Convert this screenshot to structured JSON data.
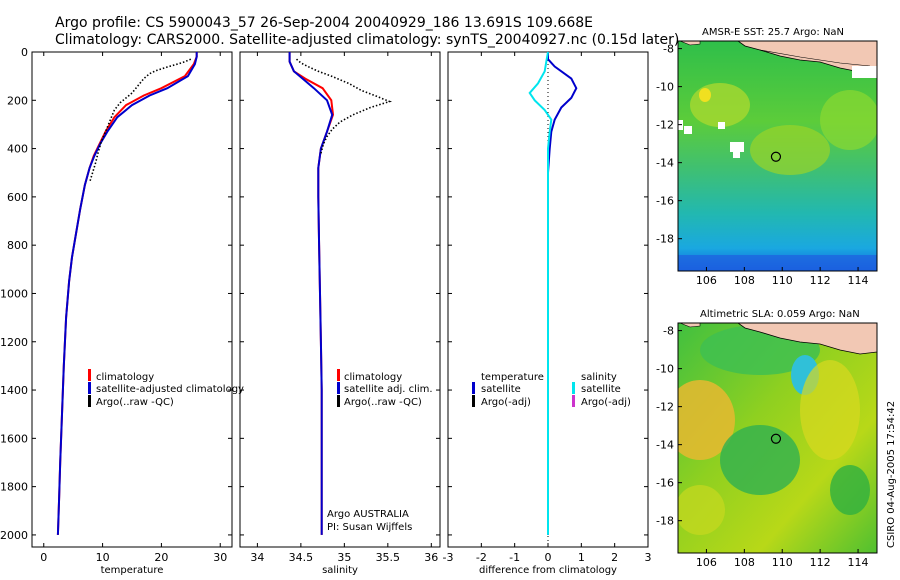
{
  "title": {
    "line1": "Argo profile: CS 5900043_57 26-Sep-2004 20040929_186 13.691S 109.668E",
    "line2": "Climatology: CARS2000. Satellite-adjusted climatology: synTS_20040927.nc (0.15d later)"
  },
  "colors": {
    "climatology": "#ff0000",
    "satellite": "#0000cc",
    "argo": "#000000",
    "salinity_diff": "#00e5ee",
    "argo_adj_salinity": "#cc33cc"
  },
  "depth_axis": {
    "ylim": [
      0,
      2050
    ],
    "ticks": [
      0,
      200,
      400,
      600,
      800,
      1000,
      1200,
      1400,
      1600,
      1800,
      2000
    ]
  },
  "chart_data": [
    {
      "id": "temperature",
      "type": "line",
      "xlabel": "temperature",
      "xlim": [
        -2,
        32
      ],
      "xticks": [
        0,
        10,
        20,
        30
      ],
      "legend": [
        "climatology",
        "satellite-adjusted climatology",
        "Argo(..raw -QC)"
      ],
      "series": [
        {
          "name": "climatology",
          "x": [
            26,
            26,
            25.5,
            24,
            20,
            17,
            14,
            12,
            10.5,
            9.5,
            8.5,
            7.8,
            7,
            6.2,
            5.5,
            4.8,
            4.3,
            3.8,
            3.4,
            3.1,
            2.8,
            2.6,
            2.4
          ],
          "y": [
            0,
            20,
            50,
            100,
            150,
            180,
            220,
            270,
            330,
            380,
            430,
            480,
            550,
            650,
            750,
            850,
            950,
            1100,
            1300,
            1500,
            1700,
            1850,
            2000
          ]
        },
        {
          "name": "satellite-adjusted climatology",
          "x": [
            26,
            26,
            25.7,
            24.5,
            21,
            18,
            15,
            12.5,
            10.8,
            9.6,
            8.6,
            7.8,
            7,
            6.2,
            5.5,
            4.8,
            4.3,
            3.8,
            3.4,
            3.1,
            2.8,
            2.6,
            2.4
          ],
          "y": [
            0,
            20,
            50,
            100,
            150,
            180,
            220,
            270,
            330,
            380,
            430,
            480,
            550,
            650,
            750,
            850,
            950,
            1100,
            1300,
            1500,
            1700,
            1850,
            2000
          ]
        },
        {
          "name": "Argo(..raw -QC)",
          "x": [
            25,
            24,
            23,
            22,
            21,
            20,
            19,
            18,
            17,
            16,
            15,
            14,
            13,
            12,
            11.5,
            11,
            10.5,
            9.8,
            9.2,
            8.8,
            8.3,
            7.8
          ],
          "y": [
            30,
            40,
            48,
            55,
            62,
            70,
            78,
            90,
            110,
            140,
            170,
            190,
            210,
            240,
            270,
            300,
            330,
            370,
            420,
            460,
            500,
            540
          ]
        }
      ]
    },
    {
      "id": "salinity",
      "type": "line",
      "xlabel": "salinity",
      "xlim": [
        33.8,
        36.1
      ],
      "xticks": [
        34,
        34.5,
        35,
        35.5,
        36
      ],
      "legend": [
        "climatology",
        "satellite adj. clim.",
        "Argo(..raw -QC)"
      ],
      "annotation": [
        "Argo AUSTRALIA",
        "PI: Susan Wijffels"
      ],
      "series": [
        {
          "name": "climatology",
          "x": [
            34.37,
            34.37,
            34.42,
            34.55,
            34.75,
            34.85,
            34.87,
            34.8,
            34.73,
            34.7,
            34.7,
            34.71,
            34.72,
            34.73,
            34.74,
            34.74,
            34.74,
            34.74,
            34.74
          ],
          "y": [
            0,
            40,
            80,
            110,
            150,
            200,
            260,
            330,
            400,
            480,
            600,
            800,
            1000,
            1200,
            1400,
            1600,
            1800,
            1950,
            2000
          ]
        },
        {
          "name": "satellite adj. clim.",
          "x": [
            34.37,
            34.37,
            34.42,
            34.52,
            34.65,
            34.8,
            34.86,
            34.8,
            34.73,
            34.7,
            34.7,
            34.71,
            34.72,
            34.73,
            34.74,
            34.74,
            34.74,
            34.74,
            34.74
          ],
          "y": [
            0,
            40,
            80,
            110,
            150,
            200,
            260,
            330,
            400,
            480,
            600,
            800,
            1000,
            1200,
            1400,
            1600,
            1800,
            1950,
            2000
          ]
        },
        {
          "name": "Argo(..raw -QC)",
          "x": [
            34.45,
            34.5,
            34.58,
            34.7,
            34.85,
            35.05,
            35.2,
            35.35,
            35.45,
            35.52,
            35.3,
            35.1,
            34.95,
            34.86,
            34.8,
            34.76,
            34.73
          ],
          "y": [
            30,
            45,
            60,
            80,
            100,
            130,
            160,
            180,
            195,
            205,
            230,
            260,
            290,
            320,
            350,
            380,
            420
          ]
        }
      ]
    },
    {
      "id": "difference",
      "type": "line",
      "xlabel": "difference from climatology",
      "xlim": [
        -3,
        3
      ],
      "xticks": [
        -3,
        -2,
        -1,
        0,
        1,
        2,
        3
      ],
      "legend_temperature": [
        "temperature",
        "satellite",
        "Argo(-adj)"
      ],
      "legend_salinity": [
        "salinity",
        "satellite",
        "Argo(-adj)"
      ],
      "series": [
        {
          "name": "temperature satellite",
          "x": [
            0,
            0,
            0.2,
            0.7,
            0.85,
            0.7,
            0.4,
            0.2,
            0.1,
            0.05,
            0,
            0,
            0
          ],
          "y": [
            0,
            30,
            60,
            110,
            150,
            190,
            230,
            280,
            330,
            400,
            500,
            1000,
            2000
          ]
        },
        {
          "name": "salinity satellite",
          "x": [
            0,
            -0.05,
            -0.1,
            -0.3,
            -0.55,
            -0.4,
            -0.1,
            0.1,
            0.05,
            0,
            0,
            0,
            0
          ],
          "y": [
            0,
            40,
            80,
            130,
            170,
            200,
            240,
            280,
            330,
            400,
            500,
            1000,
            2000
          ]
        }
      ]
    }
  ],
  "maps": [
    {
      "id": "sst",
      "title": "AMSR-E SST: 25.7 Argo: NaN",
      "xticks": [
        106,
        108,
        110,
        112,
        114
      ],
      "yticks": [
        -8,
        -10,
        -12,
        -14,
        -16,
        -18
      ],
      "xlim": [
        104.5,
        115
      ],
      "ylim": [
        -19.7,
        -7.6
      ],
      "marker": {
        "lon": 109.668,
        "lat": -13.691
      }
    },
    {
      "id": "sla",
      "title": "Altimetric SLA: 0.059 Argo: NaN",
      "xticks": [
        106,
        108,
        110,
        112,
        114
      ],
      "yticks": [
        -8,
        -10,
        -12,
        -14,
        -16,
        -18
      ],
      "xlim": [
        104.5,
        115
      ],
      "ylim": [
        -19.7,
        -7.6
      ],
      "marker": {
        "lon": 109.668,
        "lat": -13.691
      }
    }
  ],
  "footer": "CSIRO 04-Aug-2005 17:54:42"
}
